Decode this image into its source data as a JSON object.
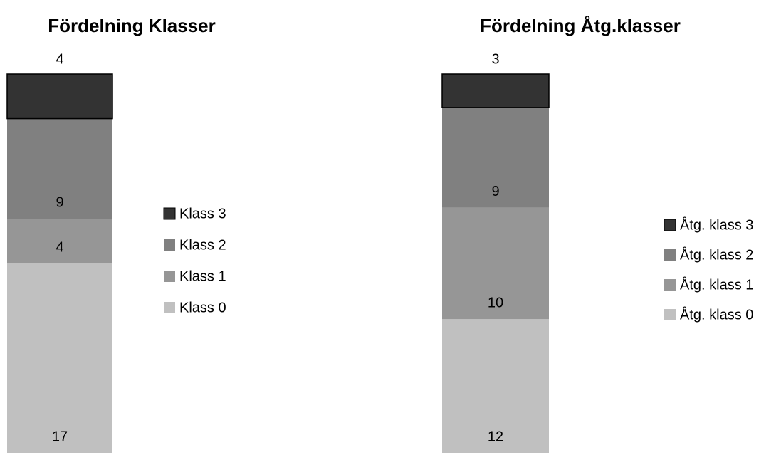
{
  "chart_data": [
    {
      "type": "bar",
      "stacked": true,
      "title": "Fördelning Klasser",
      "legend": "right",
      "series": [
        {
          "name": "Klass 0",
          "color": "#c0c0c0",
          "values": [
            17
          ]
        },
        {
          "name": "Klass 1",
          "color": "#969696",
          "values": [
            4
          ]
        },
        {
          "name": "Klass 2",
          "color": "#808080",
          "values": [
            9
          ]
        },
        {
          "name": "Klass 3",
          "color": "#333333",
          "values": [
            4
          ]
        }
      ]
    },
    {
      "type": "bar",
      "stacked": true,
      "title": "Fördelning Åtg.klasser",
      "legend": "right",
      "series": [
        {
          "name": "Åtg. klass 0",
          "color": "#c0c0c0",
          "values": [
            12
          ]
        },
        {
          "name": "Åtg. klass 1",
          "color": "#969696",
          "values": [
            10
          ]
        },
        {
          "name": "Åtg. klass 2",
          "color": "#808080",
          "values": [
            9
          ]
        },
        {
          "name": "Åtg. klass 3",
          "color": "#333333",
          "values": [
            3
          ]
        }
      ]
    }
  ]
}
